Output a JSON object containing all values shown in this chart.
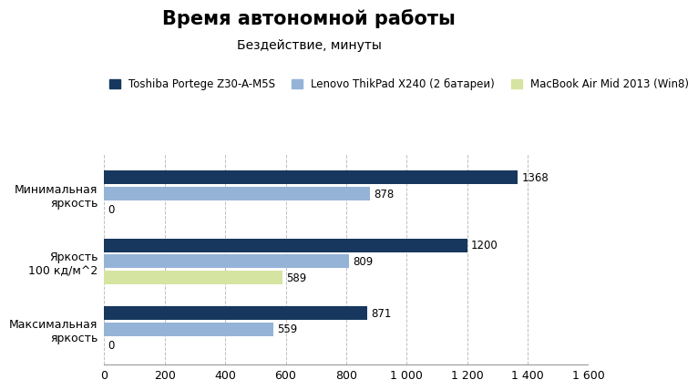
{
  "title": "Время автономной работы",
  "subtitle": "Бездействие, минуты",
  "categories": [
    "Минимальная\nяркость",
    "Яркость\n100 кд/м^2",
    "Максимальная\nяркость"
  ],
  "series": [
    {
      "label": "Toshiba Portege Z30-A-M5S",
      "color": "#17375E",
      "values": [
        1368,
        1200,
        871
      ]
    },
    {
      "label": "Lenovo ThikPad X240 (2 батареи)",
      "color": "#95B3D7",
      "values": [
        878,
        809,
        559
      ]
    },
    {
      "label": "MacBook Air Mid 2013 (Win8)",
      "color": "#D6E4A1",
      "values": [
        0,
        589,
        0
      ]
    }
  ],
  "xlim": [
    0,
    1600
  ],
  "xticks": [
    0,
    200,
    400,
    600,
    800,
    1000,
    1200,
    1400,
    1600
  ],
  "xtick_labels": [
    "0",
    "200",
    "400",
    "600",
    "800",
    "1 000",
    "1 200",
    "1 400",
    "1 600"
  ],
  "bar_height": 0.2,
  "background_color": "#FFFFFF",
  "grid_color": "#BEBEBE",
  "title_fontsize": 15,
  "subtitle_fontsize": 10,
  "legend_fontsize": 8.5,
  "tick_fontsize": 9,
  "label_fontsize": 9,
  "value_label_fontsize": 8.5
}
